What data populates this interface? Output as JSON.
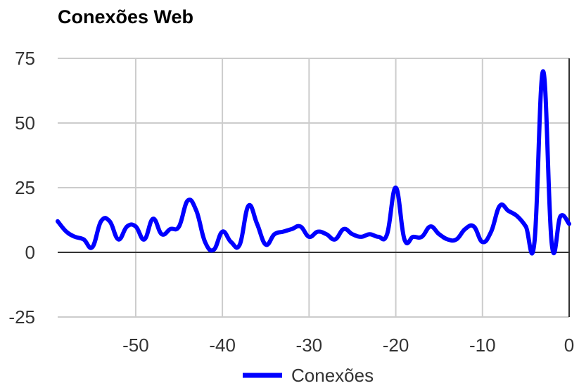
{
  "chart_data": {
    "type": "line",
    "title": "Conexões Web",
    "xlabel": "",
    "ylabel": "",
    "xlim": [
      -59,
      0
    ],
    "ylim": [
      -25,
      75
    ],
    "x_ticks": [
      -50,
      -40,
      -30,
      -20,
      -10,
      0
    ],
    "x_tick_labels": [
      "-50",
      "-40",
      "-30",
      "-20",
      "-10",
      "0"
    ],
    "y_ticks": [
      -25,
      0,
      25,
      50,
      75
    ],
    "y_tick_labels": [
      "-25",
      "0",
      "25",
      "50",
      "75"
    ],
    "grid": true,
    "legend_position": "bottom",
    "series": [
      {
        "name": "Conexões",
        "color": "#0000ff",
        "x": [
          -59,
          -58,
          -57,
          -56,
          -55,
          -54,
          -53,
          -52,
          -51,
          -50,
          -49,
          -48,
          -47,
          -46,
          -45,
          -44,
          -43,
          -42,
          -41,
          -40,
          -39,
          -38,
          -37,
          -36,
          -35,
          -34,
          -33,
          -32,
          -31,
          -30,
          -29,
          -28,
          -27,
          -26,
          -25,
          -24,
          -23,
          -22,
          -21,
          -20,
          -19,
          -18,
          -17,
          -16,
          -15,
          -14,
          -13,
          -12,
          -11,
          -10,
          -9,
          -8,
          -7,
          -6,
          -5,
          -4,
          -3,
          -2,
          -1,
          0
        ],
        "y": [
          12,
          8,
          6,
          5,
          2,
          12,
          12,
          5,
          10,
          10,
          5,
          13,
          7,
          9,
          10,
          20,
          16,
          4,
          1,
          8,
          4,
          3,
          18,
          11,
          3,
          7,
          8,
          9,
          10,
          6,
          8,
          7,
          5,
          9,
          7,
          6,
          7,
          6,
          7,
          25,
          5,
          6,
          6,
          10,
          7,
          5,
          5,
          9,
          10,
          4,
          8,
          18,
          16,
          14,
          10,
          4,
          70,
          3,
          14,
          11
        ]
      }
    ]
  }
}
